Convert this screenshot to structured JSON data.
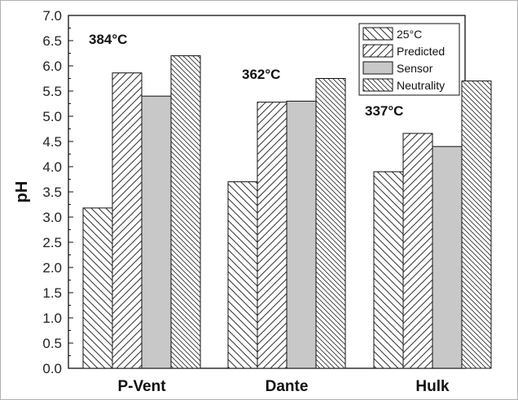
{
  "chart_data": {
    "type": "bar",
    "categories": [
      "P-Vent",
      "Dante",
      "Hulk"
    ],
    "series": [
      {
        "name": "25°C",
        "values": [
          3.18,
          3.7,
          3.9
        ],
        "fill": "hatch-backslash"
      },
      {
        "name": "Predicted",
        "values": [
          5.86,
          5.28,
          4.66
        ],
        "fill": "hatch-slash"
      },
      {
        "name": "Sensor",
        "values": [
          5.4,
          5.3,
          4.4
        ],
        "fill": "#c8c8c8"
      },
      {
        "name": "Neutrality",
        "values": [
          6.2,
          5.75,
          5.7
        ],
        "fill": "hatch-backslash-dense"
      }
    ],
    "annotations": [
      {
        "text": "384°C",
        "category": "P-Vent"
      },
      {
        "text": "362°C",
        "category": "Dante"
      },
      {
        "text": "337°C",
        "category": "Hulk"
      }
    ],
    "ylabel": "pH",
    "xlabel": "",
    "ylim": [
      0.0,
      7.0
    ],
    "yticks": [
      "0.0",
      "0.5",
      "1.0",
      "1.5",
      "2.0",
      "2.5",
      "3.0",
      "3.5",
      "4.0",
      "4.5",
      "5.0",
      "5.5",
      "6.0",
      "6.5",
      "7.0"
    ],
    "legend_position": "top-right",
    "grid": false,
    "colors": {
      "stroke": "#222222",
      "sensor_fill": "#c8c8c8",
      "background": "#ffffff"
    }
  }
}
